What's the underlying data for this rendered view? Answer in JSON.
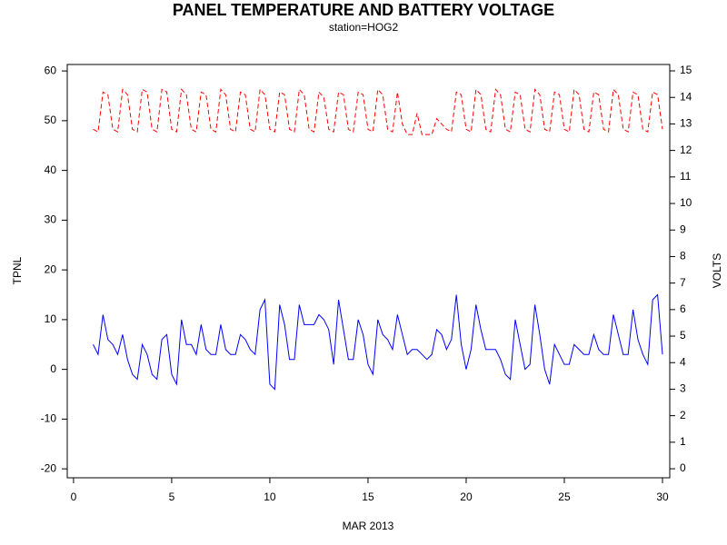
{
  "chart_data": {
    "type": "line",
    "title": "PANEL TEMPERATURE AND BATTERY VOLTAGE",
    "subtitle": "station=HOG2",
    "xlabel": "MAR 2013",
    "ylabel": "TPNL",
    "y2label": "VOLTS",
    "xlim": [
      -0.32,
      30.37
    ],
    "xticks": [
      0,
      5,
      10,
      15,
      20,
      25,
      30
    ],
    "ylim": [
      -21.8,
      61.3
    ],
    "yticks": [
      -20,
      -10,
      0,
      10,
      20,
      30,
      40,
      50,
      60
    ],
    "y2lim": [
      -0.34,
      15.24
    ],
    "y2ticks": [
      0,
      1,
      2,
      3,
      4,
      5,
      6,
      7,
      8,
      9,
      10,
      11,
      12,
      13,
      14,
      15
    ],
    "x": [
      1,
      1.25,
      1.5,
      1.75,
      2,
      2.25,
      2.5,
      2.75,
      3,
      3.25,
      3.5,
      3.75,
      4,
      4.25,
      4.5,
      4.75,
      5,
      5.25,
      5.5,
      5.75,
      6,
      6.25,
      6.5,
      6.75,
      7,
      7.25,
      7.5,
      7.75,
      8,
      8.25,
      8.5,
      8.75,
      9,
      9.25,
      9.5,
      9.75,
      10,
      10.25,
      10.5,
      10.75,
      11,
      11.25,
      11.5,
      11.75,
      12,
      12.25,
      12.5,
      12.75,
      13,
      13.25,
      13.5,
      13.75,
      14,
      14.25,
      14.5,
      14.75,
      15,
      15.25,
      15.5,
      15.75,
      16,
      16.25,
      16.5,
      16.75,
      17,
      17.25,
      17.5,
      17.75,
      18,
      18.25,
      18.5,
      18.75,
      19,
      19.25,
      19.5,
      19.75,
      20,
      20.25,
      20.5,
      20.75,
      21,
      21.25,
      21.5,
      21.75,
      22,
      22.25,
      22.5,
      22.75,
      23,
      23.25,
      23.5,
      23.75,
      24,
      24.25,
      24.5,
      24.75,
      25,
      25.25,
      25.5,
      25.75,
      26,
      26.25,
      26.5,
      26.75,
      27,
      27.25,
      27.5,
      27.75,
      28,
      28.25,
      28.5,
      28.75,
      29,
      29.25,
      29.5,
      29.75,
      30
    ],
    "series": [
      {
        "color": "#0000ff",
        "style": "solid",
        "values": [
          5,
          3,
          11,
          6,
          5,
          3,
          7,
          2,
          -1,
          -2,
          5,
          3,
          -1,
          -2,
          6,
          7,
          -1,
          -3,
          10,
          5,
          5,
          3,
          9,
          4,
          3,
          3,
          9,
          4,
          3,
          3,
          7,
          6,
          4,
          3,
          12,
          14,
          -3,
          -4,
          13,
          9,
          2,
          2,
          13,
          9,
          9,
          9,
          11,
          10,
          8,
          1,
          14,
          8,
          2,
          2,
          10,
          7,
          1,
          -1,
          10,
          7,
          6,
          4,
          11,
          7,
          3,
          4,
          4,
          3,
          2,
          3,
          8,
          7,
          4,
          6,
          15,
          5,
          0,
          4,
          13,
          8,
          4,
          4,
          4,
          2,
          -1,
          -2,
          10,
          5,
          0,
          1,
          13,
          7,
          0,
          -3,
          5,
          3,
          1,
          1,
          5,
          4,
          3,
          3,
          7,
          4,
          3,
          3,
          11,
          7,
          3,
          3,
          12,
          6,
          3,
          1,
          14,
          15,
          3
        ]
      },
      {
        "color": "#ff0000",
        "style": "dashed",
        "axis": "y2",
        "values": [
          12.8,
          12.7,
          14.2,
          14.1,
          12.8,
          12.7,
          14.3,
          14.1,
          12.8,
          12.7,
          14.3,
          14.2,
          12.8,
          12.7,
          14.3,
          14.2,
          12.8,
          12.7,
          14.3,
          14.1,
          12.8,
          12.7,
          14.2,
          14.1,
          12.8,
          12.7,
          14.3,
          14.1,
          12.8,
          12.7,
          14.2,
          14.1,
          12.8,
          12.7,
          14.3,
          14.1,
          12.8,
          12.7,
          14.2,
          14.1,
          12.8,
          12.7,
          14.3,
          14.1,
          12.8,
          12.7,
          14.2,
          14.0,
          12.8,
          12.7,
          14.2,
          14.1,
          12.8,
          12.7,
          14.2,
          14.1,
          12.8,
          12.7,
          14.3,
          14.1,
          12.8,
          12.7,
          14.2,
          13.0,
          12.6,
          12.6,
          13.4,
          12.6,
          12.6,
          12.6,
          13.2,
          13.0,
          12.8,
          12.7,
          14.2,
          14.1,
          12.8,
          12.7,
          14.3,
          14.1,
          12.8,
          12.7,
          14.3,
          14.1,
          12.8,
          12.7,
          14.2,
          14.1,
          12.8,
          12.7,
          14.3,
          14.1,
          12.8,
          12.7,
          14.2,
          14.1,
          12.8,
          12.7,
          14.3,
          14.1,
          12.8,
          12.7,
          14.2,
          14.1,
          12.8,
          12.7,
          14.3,
          14.1,
          12.8,
          12.7,
          14.2,
          14.1,
          12.8,
          12.7,
          14.2,
          14.1,
          12.8
        ]
      }
    ]
  }
}
